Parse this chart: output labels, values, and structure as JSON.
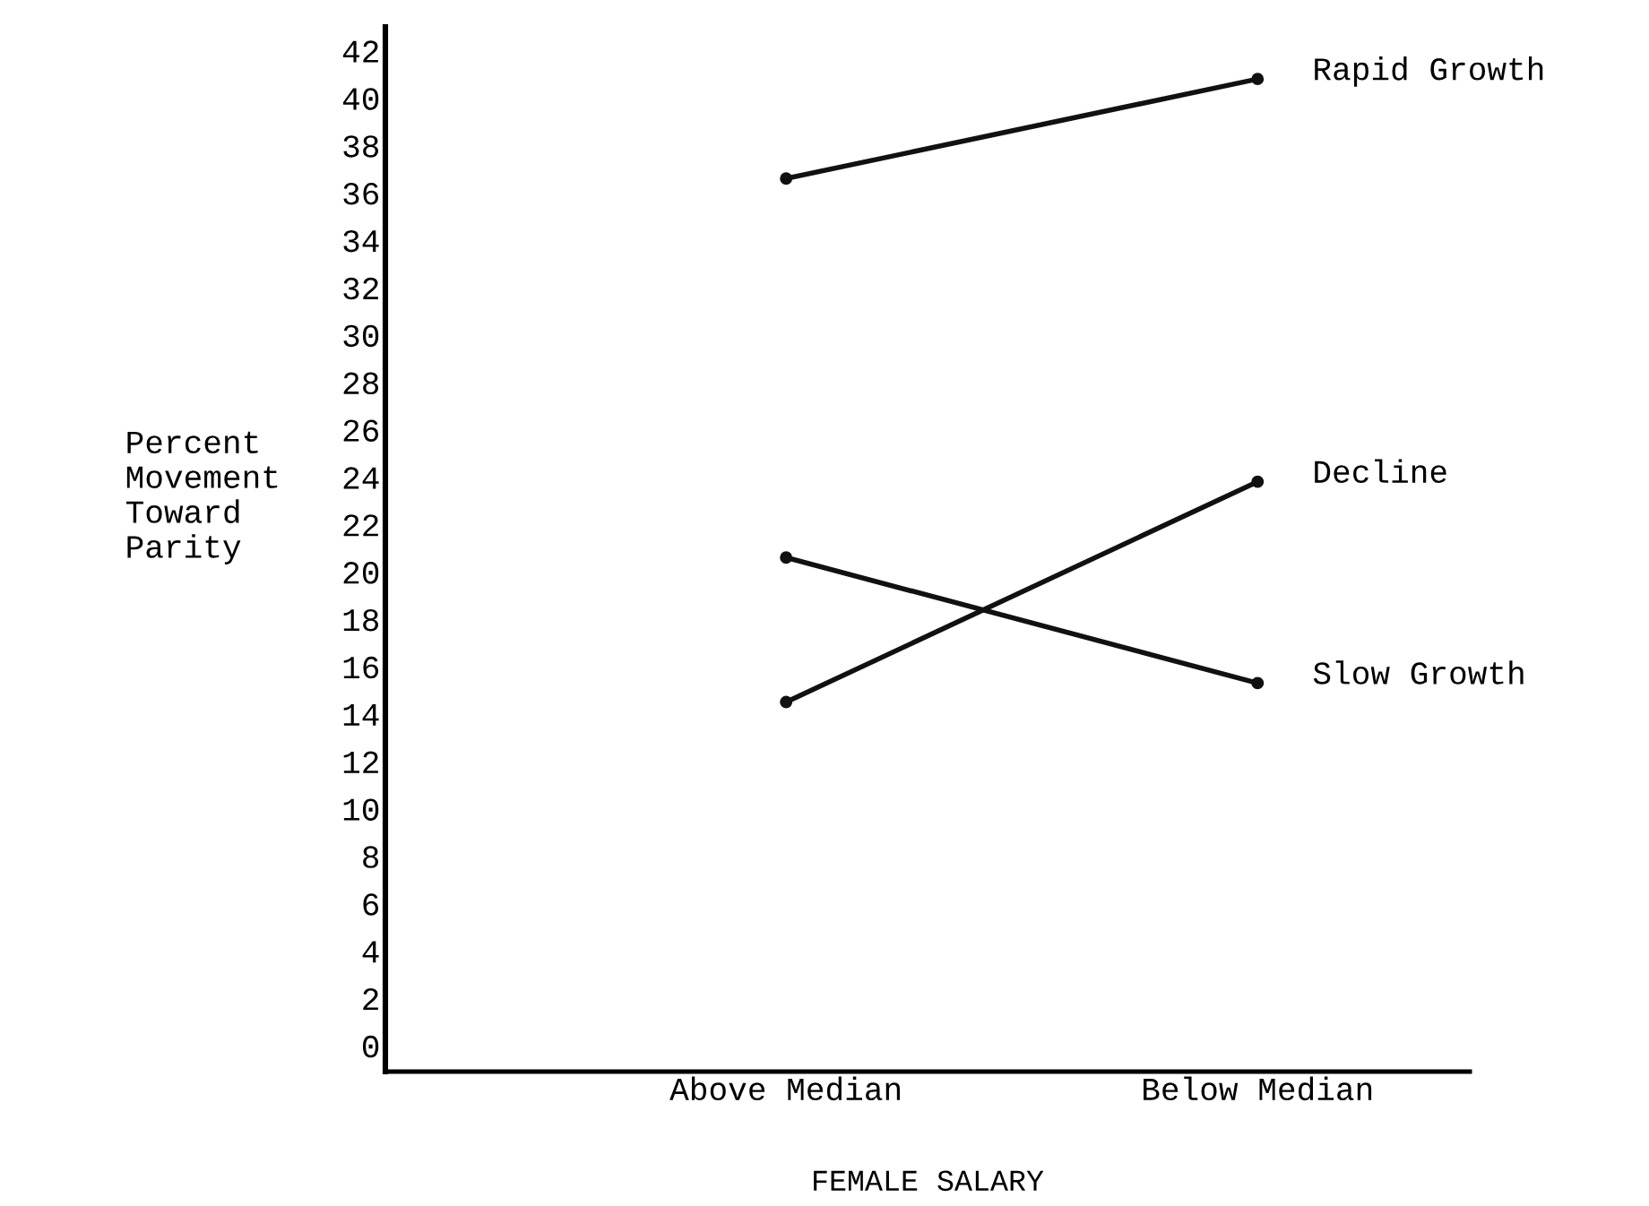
{
  "chart_data": {
    "type": "line",
    "xlabel": "FEMALE SALARY",
    "ylabel": "Percent\nMovement\nToward\nParity",
    "categories": [
      "Above Median",
      "Below Median"
    ],
    "series": [
      {
        "name": "Rapid Growth",
        "color": "#111111",
        "values": [
          36.6,
          40.8
        ]
      },
      {
        "name": "Decline",
        "color": "#111111",
        "values": [
          14.5,
          23.8
        ]
      },
      {
        "name": "Slow Growth",
        "color": "#111111",
        "values": [
          20.6,
          15.3
        ]
      }
    ],
    "ylim": [
      -1.1,
      43
    ],
    "yticks": [
      0,
      2,
      4,
      6,
      8,
      10,
      12,
      14,
      16,
      18,
      20,
      22,
      24,
      26,
      28,
      30,
      32,
      34,
      36,
      38,
      40,
      42
    ],
    "grid": false,
    "legend": false,
    "marker": "circle",
    "line_style": "solid"
  }
}
